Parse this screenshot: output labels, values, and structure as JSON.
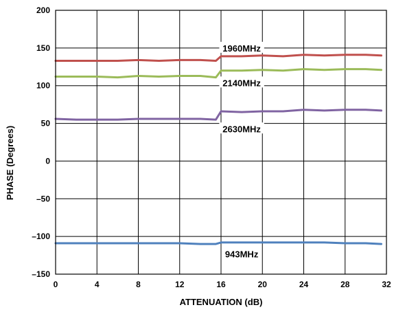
{
  "chart_data": {
    "type": "line",
    "xlabel": "ATTENUATION (dB)",
    "ylabel": "PHASE (Degrees)",
    "xlim": [
      0,
      32
    ],
    "ylim": [
      -150,
      200
    ],
    "xticks": [
      0,
      4,
      8,
      12,
      16,
      20,
      24,
      28,
      32
    ],
    "xtick_labels": [
      "0",
      "4",
      "8",
      "12",
      "16",
      "20",
      "24",
      "28",
      "32"
    ],
    "yticks": [
      -150,
      -100,
      -50,
      0,
      50,
      100,
      150,
      200
    ],
    "ytick_labels": [
      "–150",
      "–100",
      "–50",
      "0",
      "50",
      "100",
      "150",
      "200"
    ],
    "grid": true,
    "x": [
      0,
      2,
      4,
      6,
      8,
      10,
      12,
      14,
      15.5,
      16,
      18,
      20,
      22,
      24,
      26,
      28,
      30,
      31.5
    ],
    "series": [
      {
        "name": "1960MHz",
        "color": "#c0504d",
        "values": [
          133,
          133,
          133,
          133,
          134,
          133,
          134,
          134,
          133,
          139,
          139,
          140,
          139,
          141,
          140,
          141,
          141,
          140
        ]
      },
      {
        "name": "2140MHz",
        "color": "#9bbb59",
        "values": [
          112,
          112,
          112,
          111,
          113,
          112,
          113,
          113,
          111,
          120,
          120,
          121,
          120,
          122,
          121,
          122,
          122,
          121
        ]
      },
      {
        "name": "2630MHz",
        "color": "#8064a2",
        "values": [
          56,
          55,
          55,
          55,
          56,
          56,
          56,
          56,
          55,
          66,
          65,
          66,
          66,
          68,
          67,
          68,
          68,
          67
        ]
      },
      {
        "name": "943MHz",
        "color": "#4f81bd",
        "values": [
          -109,
          -109,
          -109,
          -109,
          -109,
          -109,
          -109,
          -110,
          -110,
          -108,
          -108,
          -108,
          -108,
          -108,
          -108,
          -109,
          -109,
          -110
        ]
      }
    ],
    "annotations": [
      {
        "text": "1960MHz",
        "series": "1960MHz",
        "x": 18,
        "y": 150
      },
      {
        "text": "2140MHz",
        "series": "2140MHz",
        "x": 18,
        "y": 104
      },
      {
        "text": "2630MHz",
        "series": "2630MHz",
        "x": 18,
        "y": 43
      },
      {
        "text": "943MHz",
        "series": "943MHz",
        "x": 18,
        "y": -123
      }
    ]
  }
}
